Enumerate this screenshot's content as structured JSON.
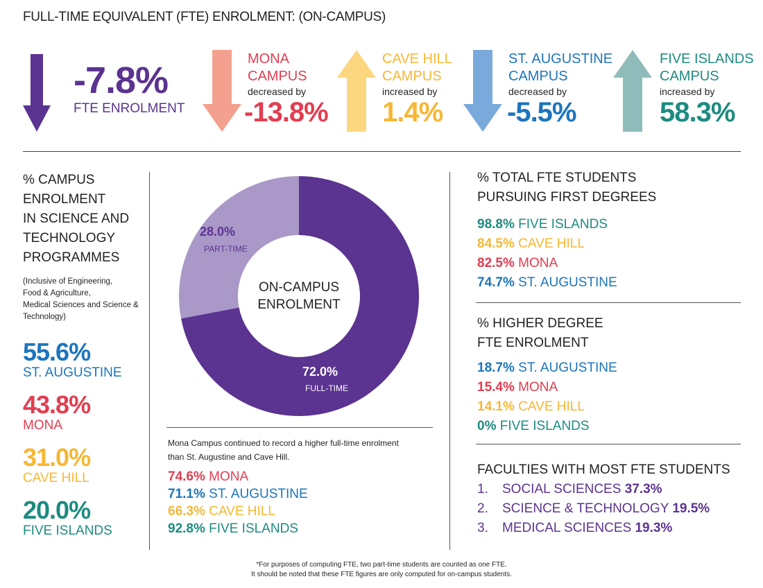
{
  "title": "FULL-TIME EQUIVALENT (FTE) ENROLMENT: (ON-CAMPUS)",
  "colors": {
    "purple": "#5b3390",
    "salmon": "#f3a08e",
    "yellow": "#fcd77f",
    "lightblue": "#7aaadb",
    "teal_light": "#8fbcbb",
    "red": "#e23d50",
    "gold": "#f7b733",
    "blue": "#1c75bc",
    "teal": "#1e8b80",
    "lavender": "#a998c8"
  },
  "overall": {
    "value": "-7.8%",
    "label": "FTE ENROLMENT"
  },
  "campuses": [
    {
      "name_line1": "MONA",
      "name_line2": "CAMPUS",
      "change_text": "decreased by",
      "value": "-13.8%",
      "direction": "down"
    },
    {
      "name_line1": "CAVE HILL",
      "name_line2": "CAMPUS",
      "change_text": "increased by",
      "value": "1.4%",
      "direction": "up"
    },
    {
      "name_line1": "ST. AUGUSTINE",
      "name_line2": "CAMPUS",
      "change_text": "decreased by",
      "value": "-5.5%",
      "direction": "down"
    },
    {
      "name_line1": "FIVE ISLANDS",
      "name_line2": "CAMPUS",
      "change_text": "increased by",
      "value": "58.3%",
      "direction": "up"
    }
  ],
  "science": {
    "heading": [
      "% CAMPUS",
      "ENROLMENT",
      "IN SCIENCE AND",
      "TECHNOLOGY",
      "PROGRAMMES"
    ],
    "note": [
      "(Inclusive of Engineering,",
      "Food & Agriculture,",
      "Medical Sciences and Science &",
      "Technology)"
    ],
    "items": [
      {
        "value": "55.6%",
        "label": "ST. AUGUSTINE"
      },
      {
        "value": "43.8%",
        "label": "MONA"
      },
      {
        "value": "31.0%",
        "label": "CAVE HILL"
      },
      {
        "value": "20.0%",
        "label": "FIVE ISLANDS"
      }
    ]
  },
  "chart_data": {
    "type": "pie",
    "title": "",
    "center_label": [
      "ON-CAMPUS",
      "ENROLMENT"
    ],
    "slices": [
      {
        "name": "FULL-TIME",
        "value": 72.0,
        "value_label": "72.0%"
      },
      {
        "name": "PART-TIME",
        "value": 28.0,
        "value_label": "28.0%"
      }
    ]
  },
  "fulltime": {
    "note": [
      "Mona Campus continued to record a higher full-time enrolment",
      "than St. Augustine and Cave Hill."
    ],
    "items": [
      {
        "value": "74.6%",
        "label": "MONA"
      },
      {
        "value": "71.1%",
        "label": "ST. AUGUSTINE"
      },
      {
        "value": "66.3%",
        "label": "CAVE HILL"
      },
      {
        "value": "92.8%",
        "label": "FIVE ISLANDS"
      }
    ]
  },
  "first_degrees": {
    "heading": [
      "% TOTAL FTE STUDENTS",
      "PURSUING FIRST DEGREES"
    ],
    "items": [
      {
        "value": "98.8%",
        "label": "FIVE ISLANDS"
      },
      {
        "value": "84.5%",
        "label": "CAVE HILL"
      },
      {
        "value": "82.5%",
        "label": "MONA"
      },
      {
        "value": "74.7%",
        "label": "ST. AUGUSTINE"
      }
    ]
  },
  "higher_degree": {
    "heading": [
      "% HIGHER DEGREE",
      "FTE ENROLMENT"
    ],
    "items": [
      {
        "value": "18.7%",
        "label": "ST. AUGUSTINE"
      },
      {
        "value": "15.4%",
        "label": "MONA"
      },
      {
        "value": "14.1%",
        "label": "CAVE HILL"
      },
      {
        "value": "0%",
        "label": "FIVE ISLANDS"
      }
    ]
  },
  "faculties": {
    "heading": "FACULTIES WITH MOST FTE STUDENTS",
    "items": [
      {
        "num": "1.",
        "name": "SOCIAL SCIENCES",
        "value": "37.3%"
      },
      {
        "num": "2.",
        "name": "SCIENCE & TECHNOLOGY",
        "value": "19.5%"
      },
      {
        "num": "3.",
        "name": "MEDICAL SCIENCES",
        "value": "19.3%"
      }
    ]
  },
  "footnote": [
    "*For purposes of computing FTE, two part-time students are counted as one FTE.",
    "It should be noted that these FTE figures are only computed for on-campus students."
  ]
}
